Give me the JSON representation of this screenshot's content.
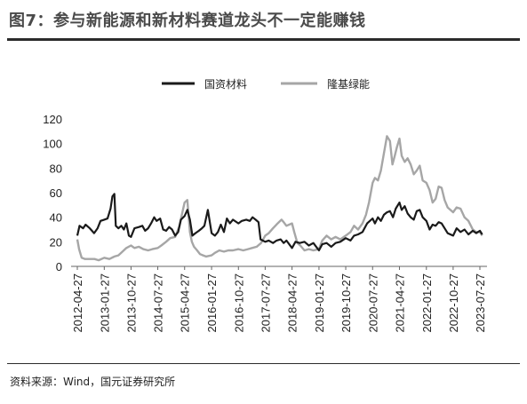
{
  "header": {
    "title": "图7：参与新能源和新材料赛道龙头不一定能赚钱"
  },
  "footer": {
    "source": "资料来源：Wind，国元证券研究所"
  },
  "chart_data": {
    "type": "line",
    "title": "",
    "xlabel": "",
    "ylabel": "",
    "ylim": [
      0,
      120
    ],
    "yticks": [
      0,
      20,
      40,
      60,
      80,
      100,
      120
    ],
    "xlim": [
      "2012-04-27",
      "2023-09-01"
    ],
    "xticks": [
      "2012-04-27",
      "2013-01-27",
      "2013-10-27",
      "2014-07-27",
      "2015-04-27",
      "2016-01-27",
      "2016-10-27",
      "2017-07-27",
      "2018-04-27",
      "2019-01-27",
      "2019-10-27",
      "2020-07-27",
      "2021-04-27",
      "2022-01-27",
      "2022-10-27",
      "2023-07-27"
    ],
    "grid": false,
    "legend_position": "top",
    "series": [
      {
        "name": "国资材料",
        "color": "#1a1a1a",
        "points": [
          [
            "2012-04-27",
            25
          ],
          [
            "2012-05-20",
            33
          ],
          [
            "2012-06-25",
            31
          ],
          [
            "2012-07-20",
            34
          ],
          [
            "2012-09-01",
            31
          ],
          [
            "2012-10-15",
            27
          ],
          [
            "2012-11-20",
            31
          ],
          [
            "2012-12-20",
            37
          ],
          [
            "2013-01-27",
            38
          ],
          [
            "2013-03-01",
            39
          ],
          [
            "2013-04-01",
            47
          ],
          [
            "2013-04-20",
            57
          ],
          [
            "2013-05-10",
            59
          ],
          [
            "2013-05-25",
            33
          ],
          [
            "2013-06-20",
            31
          ],
          [
            "2013-07-20",
            33
          ],
          [
            "2013-08-15",
            30
          ],
          [
            "2013-09-10",
            35
          ],
          [
            "2013-10-05",
            25
          ],
          [
            "2013-10-27",
            24
          ],
          [
            "2013-12-01",
            31
          ],
          [
            "2014-01-15",
            32
          ],
          [
            "2014-02-20",
            33
          ],
          [
            "2014-03-20",
            29
          ],
          [
            "2014-04-20",
            31
          ],
          [
            "2014-05-20",
            35
          ],
          [
            "2014-06-20",
            40
          ],
          [
            "2014-07-15",
            37
          ],
          [
            "2014-08-20",
            39
          ],
          [
            "2014-09-20",
            30
          ],
          [
            "2014-10-20",
            29
          ],
          [
            "2014-11-20",
            32
          ],
          [
            "2014-12-20",
            30
          ],
          [
            "2015-01-20",
            25
          ],
          [
            "2015-02-20",
            28
          ],
          [
            "2015-03-20",
            38
          ],
          [
            "2015-04-27",
            41
          ],
          [
            "2015-05-25",
            46
          ],
          [
            "2015-06-20",
            38
          ],
          [
            "2015-07-15",
            25
          ],
          [
            "2015-08-15",
            27
          ],
          [
            "2015-09-20",
            29
          ],
          [
            "2015-10-20",
            31
          ],
          [
            "2015-11-15",
            33
          ],
          [
            "2015-12-20",
            46
          ],
          [
            "2016-01-27",
            27
          ],
          [
            "2016-03-01",
            25
          ],
          [
            "2016-04-01",
            28
          ],
          [
            "2016-05-01",
            34
          ],
          [
            "2016-06-01",
            28
          ],
          [
            "2016-07-01",
            39
          ],
          [
            "2016-08-01",
            35
          ],
          [
            "2016-09-01",
            38
          ],
          [
            "2016-10-27",
            35
          ],
          [
            "2016-12-01",
            37
          ],
          [
            "2017-01-15",
            38
          ],
          [
            "2017-02-20",
            37
          ],
          [
            "2017-03-20",
            40
          ],
          [
            "2017-04-20",
            38
          ],
          [
            "2017-05-20",
            36
          ],
          [
            "2017-06-10",
            22
          ],
          [
            "2017-07-27",
            20
          ],
          [
            "2017-09-01",
            21
          ],
          [
            "2017-10-15",
            19
          ],
          [
            "2017-11-20",
            21
          ],
          [
            "2018-01-01",
            22
          ],
          [
            "2018-02-01",
            19
          ],
          [
            "2018-03-01",
            21
          ],
          [
            "2018-04-27",
            15
          ],
          [
            "2018-06-01",
            20
          ],
          [
            "2018-07-15",
            19
          ],
          [
            "2018-09-01",
            20
          ],
          [
            "2018-10-15",
            17
          ],
          [
            "2018-12-01",
            19
          ],
          [
            "2019-01-27",
            13
          ],
          [
            "2019-03-01",
            18
          ],
          [
            "2019-04-15",
            19
          ],
          [
            "2019-06-01",
            16
          ],
          [
            "2019-07-15",
            19
          ],
          [
            "2019-09-01",
            20
          ],
          [
            "2019-10-27",
            23
          ],
          [
            "2019-12-15",
            21
          ],
          [
            "2020-01-20",
            25
          ],
          [
            "2020-03-01",
            26
          ],
          [
            "2020-04-15",
            28
          ],
          [
            "2020-06-01",
            35
          ],
          [
            "2020-07-27",
            39
          ],
          [
            "2020-08-20",
            35
          ],
          [
            "2020-09-20",
            40
          ],
          [
            "2020-10-20",
            37
          ],
          [
            "2020-11-20",
            42
          ],
          [
            "2020-12-20",
            44
          ],
          [
            "2021-01-20",
            45
          ],
          [
            "2021-02-20",
            40
          ],
          [
            "2021-03-20",
            47
          ],
          [
            "2021-04-27",
            52
          ],
          [
            "2021-05-20",
            46
          ],
          [
            "2021-06-20",
            49
          ],
          [
            "2021-07-20",
            43
          ],
          [
            "2021-08-20",
            40
          ],
          [
            "2021-09-20",
            38
          ],
          [
            "2021-10-20",
            45
          ],
          [
            "2021-11-20",
            46
          ],
          [
            "2021-12-20",
            40
          ],
          [
            "2022-01-27",
            37
          ],
          [
            "2022-03-01",
            30
          ],
          [
            "2022-04-01",
            34
          ],
          [
            "2022-05-01",
            33
          ],
          [
            "2022-06-01",
            36
          ],
          [
            "2022-07-01",
            35
          ],
          [
            "2022-08-01",
            31
          ],
          [
            "2022-09-01",
            27
          ],
          [
            "2022-10-27",
            25
          ],
          [
            "2022-12-01",
            31
          ],
          [
            "2023-01-10",
            28
          ],
          [
            "2023-02-20",
            30
          ],
          [
            "2023-04-01",
            26
          ],
          [
            "2023-05-15",
            29
          ],
          [
            "2023-06-20",
            27
          ],
          [
            "2023-07-27",
            29
          ],
          [
            "2023-08-20",
            26
          ]
        ]
      },
      {
        "name": "隆基绿能",
        "color": "#a6a6a6",
        "points": [
          [
            "2012-04-27",
            22
          ],
          [
            "2012-05-15",
            14
          ],
          [
            "2012-06-10",
            7
          ],
          [
            "2012-07-15",
            6
          ],
          [
            "2012-09-01",
            6
          ],
          [
            "2012-10-20",
            6
          ],
          [
            "2012-12-01",
            5
          ],
          [
            "2013-01-27",
            7
          ],
          [
            "2013-03-20",
            6
          ],
          [
            "2013-05-10",
            8
          ],
          [
            "2013-06-20",
            9
          ],
          [
            "2013-08-01",
            12
          ],
          [
            "2013-09-10",
            15
          ],
          [
            "2013-10-27",
            17
          ],
          [
            "2013-12-01",
            15
          ],
          [
            "2014-01-15",
            16
          ],
          [
            "2014-03-01",
            14
          ],
          [
            "2014-04-20",
            13
          ],
          [
            "2014-06-01",
            14
          ],
          [
            "2014-07-27",
            15
          ],
          [
            "2014-09-01",
            17
          ],
          [
            "2014-10-20",
            20
          ],
          [
            "2014-12-01",
            23
          ],
          [
            "2015-01-20",
            24
          ],
          [
            "2015-03-01",
            32
          ],
          [
            "2015-04-27",
            52
          ],
          [
            "2015-05-25",
            54
          ],
          [
            "2015-06-20",
            28
          ],
          [
            "2015-07-10",
            20
          ],
          [
            "2015-08-01",
            16
          ],
          [
            "2015-09-01",
            13
          ],
          [
            "2015-10-01",
            10
          ],
          [
            "2015-11-01",
            9
          ],
          [
            "2015-12-01",
            8
          ],
          [
            "2016-01-27",
            9
          ],
          [
            "2016-03-01",
            11
          ],
          [
            "2016-04-15",
            13
          ],
          [
            "2016-06-01",
            12
          ],
          [
            "2016-07-15",
            13
          ],
          [
            "2016-09-01",
            13
          ],
          [
            "2016-10-27",
            14
          ],
          [
            "2016-12-15",
            13
          ],
          [
            "2017-02-01",
            14
          ],
          [
            "2017-03-15",
            15
          ],
          [
            "2017-05-01",
            16
          ],
          [
            "2017-06-15",
            19
          ],
          [
            "2017-07-27",
            25
          ],
          [
            "2017-09-01",
            27
          ],
          [
            "2017-10-15",
            31
          ],
          [
            "2017-12-01",
            35
          ],
          [
            "2018-01-10",
            38
          ],
          [
            "2018-02-01",
            36
          ],
          [
            "2018-03-01",
            33
          ],
          [
            "2018-04-27",
            35
          ],
          [
            "2018-05-20",
            28
          ],
          [
            "2018-06-20",
            19
          ],
          [
            "2018-07-20",
            17
          ],
          [
            "2018-09-01",
            13
          ],
          [
            "2018-10-15",
            14
          ],
          [
            "2018-12-01",
            13
          ],
          [
            "2019-01-27",
            14
          ],
          [
            "2019-03-01",
            21
          ],
          [
            "2019-04-15",
            25
          ],
          [
            "2019-06-01",
            22
          ],
          [
            "2019-07-15",
            24
          ],
          [
            "2019-09-01",
            22
          ],
          [
            "2019-10-27",
            25
          ],
          [
            "2019-12-15",
            28
          ],
          [
            "2020-01-20",
            33
          ],
          [
            "2020-03-01",
            30
          ],
          [
            "2020-04-15",
            35
          ],
          [
            "2020-05-20",
            42
          ],
          [
            "2020-06-20",
            52
          ],
          [
            "2020-07-27",
            68
          ],
          [
            "2020-08-20",
            72
          ],
          [
            "2020-09-20",
            70
          ],
          [
            "2020-10-20",
            78
          ],
          [
            "2020-11-20",
            92
          ],
          [
            "2020-12-20",
            106
          ],
          [
            "2021-01-20",
            102
          ],
          [
            "2021-02-15",
            83
          ],
          [
            "2021-03-10",
            90
          ],
          [
            "2021-04-01",
            97
          ],
          [
            "2021-04-27",
            104
          ],
          [
            "2021-05-20",
            90
          ],
          [
            "2021-06-20",
            85
          ],
          [
            "2021-07-20",
            88
          ],
          [
            "2021-08-20",
            83
          ],
          [
            "2021-09-20",
            75
          ],
          [
            "2021-10-20",
            78
          ],
          [
            "2021-11-20",
            82
          ],
          [
            "2021-12-20",
            70
          ],
          [
            "2022-01-27",
            68
          ],
          [
            "2022-03-01",
            62
          ],
          [
            "2022-04-01",
            52
          ],
          [
            "2022-05-01",
            55
          ],
          [
            "2022-06-01",
            65
          ],
          [
            "2022-07-01",
            64
          ],
          [
            "2022-08-01",
            54
          ],
          [
            "2022-09-01",
            48
          ],
          [
            "2022-10-27",
            44
          ],
          [
            "2022-12-01",
            48
          ],
          [
            "2023-01-10",
            47
          ],
          [
            "2023-02-20",
            40
          ],
          [
            "2023-04-01",
            37
          ],
          [
            "2023-05-15",
            30
          ],
          [
            "2023-06-20",
            28
          ],
          [
            "2023-07-27",
            28
          ],
          [
            "2023-08-20",
            25
          ]
        ]
      }
    ]
  }
}
